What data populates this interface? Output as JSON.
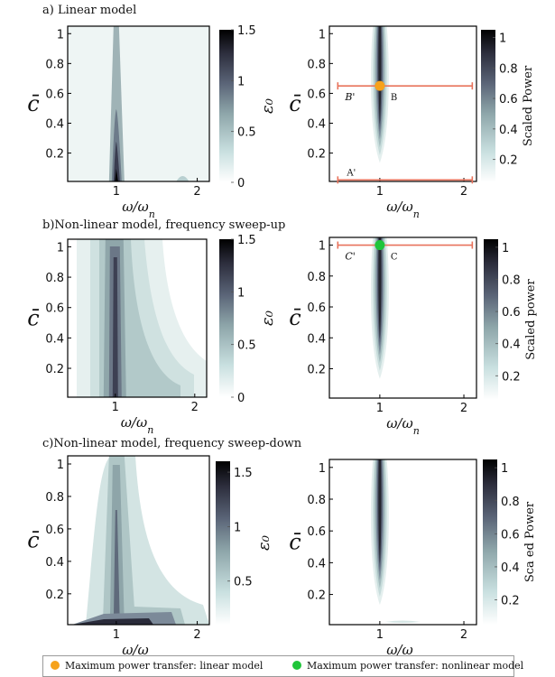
{
  "figure": {
    "sections": [
      {
        "title": "a) Linear model"
      },
      {
        "title": "b)Non-linear model, frequency sweep-up"
      },
      {
        "title": "c)Non-linear model, frequency sweep-down"
      }
    ],
    "legend": [
      {
        "label": "Maximum power transfer: linear model",
        "color": "#f6a21b"
      },
      {
        "label": "Maximum power transfer: nonlinear model",
        "color": "#1fc53a"
      }
    ],
    "colormap": [
      "#ffffff",
      "#c9e0e0",
      "#8ea6aa",
      "#5a6477",
      "#2c2d3c",
      "#000000"
    ]
  },
  "chart_data": [
    {
      "type": "heatmap",
      "section": "a",
      "xlabel": "ω/ω_n",
      "ylabel": "c̄",
      "xlim": [
        0.4,
        2.15
      ],
      "ylim": [
        0.01,
        1.05
      ],
      "xticks": [
        1,
        2
      ],
      "yticks": [
        0.2,
        0.4,
        0.6,
        0.8,
        1
      ],
      "colorbar": {
        "label": "ε₀",
        "ticks": [
          0,
          0.5,
          1,
          1.5
        ],
        "range": [
          0,
          1.5
        ]
      },
      "peaks": [
        {
          "x": 1.0,
          "y_top": 1.05,
          "value_at_bottom": 1.5
        },
        {
          "x": 1.82,
          "y_top": 0.04,
          "value_at_bottom": 0.3
        }
      ]
    },
    {
      "type": "heatmap",
      "section": "a",
      "xlabel": "ω/ω_n",
      "ylabel": "c̄",
      "xlim": [
        0.4,
        2.15
      ],
      "ylim": [
        0.01,
        1.05
      ],
      "xticks": [
        1,
        2
      ],
      "yticks": [
        0.2,
        0.4,
        0.6,
        0.8,
        1
      ],
      "colorbar": {
        "label": "Scaled Power",
        "ticks": [
          0.2,
          0.4,
          0.6,
          0.8,
          1
        ],
        "range": [
          0.05,
          1.05
        ]
      },
      "ridge": {
        "x": 1.0
      },
      "lines": [
        {
          "y": 0.65,
          "x_start": 0.5,
          "x_end": 2.1,
          "labels": [
            "B'",
            "B"
          ]
        },
        {
          "y": 0.02,
          "x_start": 0.5,
          "x_end": 2.1,
          "labels": [
            "A'"
          ]
        }
      ],
      "markers": [
        {
          "x": 1.0,
          "y": 0.65,
          "legend_index": 0
        }
      ]
    },
    {
      "type": "heatmap",
      "section": "b",
      "xlabel": "ω/ω_n",
      "ylabel": "c̄",
      "xlim": [
        0.4,
        2.15
      ],
      "ylim": [
        0.01,
        1.05
      ],
      "xticks": [
        1,
        2
      ],
      "yticks": [
        0.2,
        0.4,
        0.6,
        0.8,
        1
      ],
      "colorbar": {
        "label": "ε₀",
        "ticks": [
          0,
          0.5,
          1,
          1.5
        ],
        "range": [
          0,
          1.5
        ]
      },
      "ridge": {
        "x": 1.0
      }
    },
    {
      "type": "heatmap",
      "section": "b",
      "xlabel": "ω/ω_n",
      "ylabel": "c̄",
      "xlim": [
        0.4,
        2.15
      ],
      "ylim": [
        0.01,
        1.05
      ],
      "xticks": [
        1,
        2
      ],
      "yticks": [
        0.2,
        0.4,
        0.6,
        0.8,
        1
      ],
      "colorbar": {
        "label": "Scaled power",
        "ticks": [
          0.2,
          0.4,
          0.6,
          0.8,
          1
        ],
        "range": [
          0.05,
          1.05
        ]
      },
      "ridge": {
        "x": 1.0
      },
      "lines": [
        {
          "y": 1.0,
          "x_start": 0.5,
          "x_end": 2.1,
          "labels": [
            "C'",
            "C"
          ]
        }
      ],
      "markers": [
        {
          "x": 1.0,
          "y": 1.0,
          "legend_index": 1
        }
      ]
    },
    {
      "type": "heatmap",
      "section": "c",
      "xlabel": "ω/ω_n",
      "ylabel": "c̄",
      "xlim": [
        0.4,
        2.15
      ],
      "ylim": [
        0.01,
        1.05
      ],
      "xticks": [
        1,
        2
      ],
      "yticks": [
        0.2,
        0.4,
        0.6,
        0.8,
        1
      ],
      "colorbar": {
        "label": "ε₀",
        "ticks": [
          0.5,
          1,
          1.5
        ],
        "range": [
          0.1,
          1.6
        ]
      },
      "ridge": {
        "x": 1.0
      }
    },
    {
      "type": "heatmap",
      "section": "c",
      "xlabel": "ω/ω_n",
      "ylabel": "c̄",
      "xlim": [
        0.4,
        2.15
      ],
      "ylim": [
        0.01,
        1.05
      ],
      "xticks": [
        1,
        2
      ],
      "yticks": [
        0.2,
        0.4,
        0.6,
        0.8,
        1
      ],
      "colorbar": {
        "label": "Sca ed Power",
        "ticks": [
          0.2,
          0.4,
          0.6,
          0.8,
          1
        ],
        "range": [
          0.05,
          1.05
        ]
      },
      "ridge": {
        "x": 1.0
      }
    }
  ]
}
